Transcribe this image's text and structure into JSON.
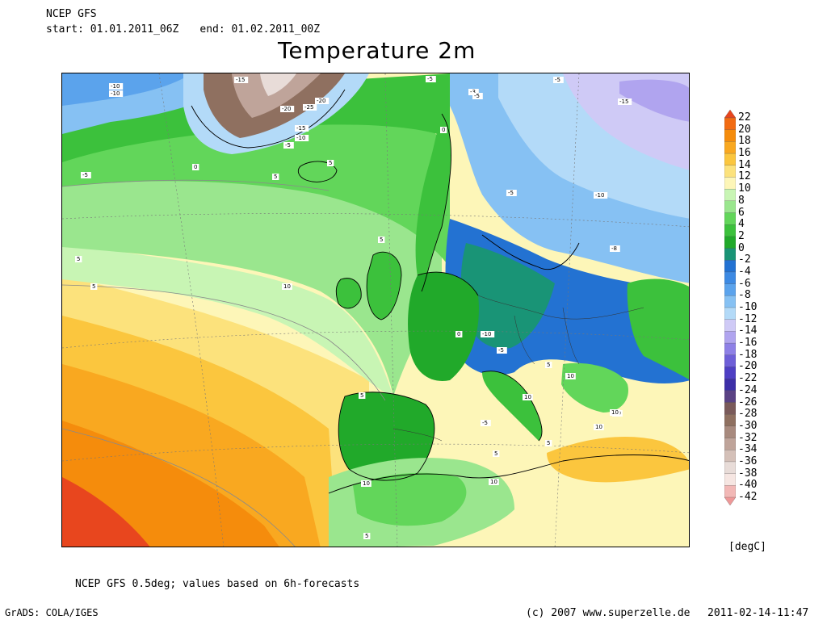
{
  "header": {
    "model": "NCEP GFS",
    "start_label": "start:",
    "start": "01.01.2011_06Z",
    "end_label": "end:",
    "end": "01.02.2011_00Z",
    "title": "Temperature 2m"
  },
  "footer": {
    "note": "NCEP GFS 0.5deg; values based on 6h-forecasts",
    "grads": "GrADS: COLA/IGES",
    "copyright": "(c) 2007 www.superzelle.de",
    "timestamp": "2011-02-14-11:47"
  },
  "legend": {
    "units": "[degC]",
    "ticks": [
      "22",
      "20",
      "18",
      "16",
      "14",
      "12",
      "10",
      "8",
      "6",
      "4",
      "2",
      "0",
      "-2",
      "-4",
      "-6",
      "-8",
      "-10",
      "-12",
      "-14",
      "-16",
      "-18",
      "-20",
      "-22",
      "-24",
      "-26",
      "-28",
      "-30",
      "-32",
      "-34",
      "-36",
      "-38",
      "-40",
      "-42"
    ],
    "colors": [
      "#e8461e",
      "#f26b12",
      "#f58c0c",
      "#f9a820",
      "#fbc63e",
      "#fce27c",
      "#fdf6b8",
      "#c8f5b4",
      "#9ae68e",
      "#62d65a",
      "#3cc13c",
      "#21a92a",
      "#199476",
      "#2372d2",
      "#3d8ae3",
      "#5ba3ec",
      "#86c1f3",
      "#b3daf8",
      "#cfcaf6",
      "#b0a4ef",
      "#8e80e6",
      "#6e5fd8",
      "#4e3fc4",
      "#3d2fa8",
      "#5a4284",
      "#7a5a5a",
      "#8f7060",
      "#a88a7e",
      "#bfa49a",
      "#d4c0b8",
      "#e8dcd8",
      "#f6e6e2",
      "#f2b8b6",
      "#ee9898"
    ]
  },
  "map": {
    "labels": [
      "-15",
      "-10",
      "-10",
      "-5",
      "-20",
      "-25",
      "-20",
      "-15",
      "-10",
      "-5",
      "-5",
      "-3",
      "-5",
      "-5",
      "0",
      "0",
      "5",
      "5",
      "5",
      "-5",
      "-10",
      "-15",
      "-8",
      "-5",
      "-5",
      "-10",
      "5",
      "5",
      "10",
      "10",
      "5",
      "10",
      "10",
      "10",
      "5",
      "5",
      "0",
      "5",
      "10",
      "10",
      "5",
      "10"
    ]
  }
}
